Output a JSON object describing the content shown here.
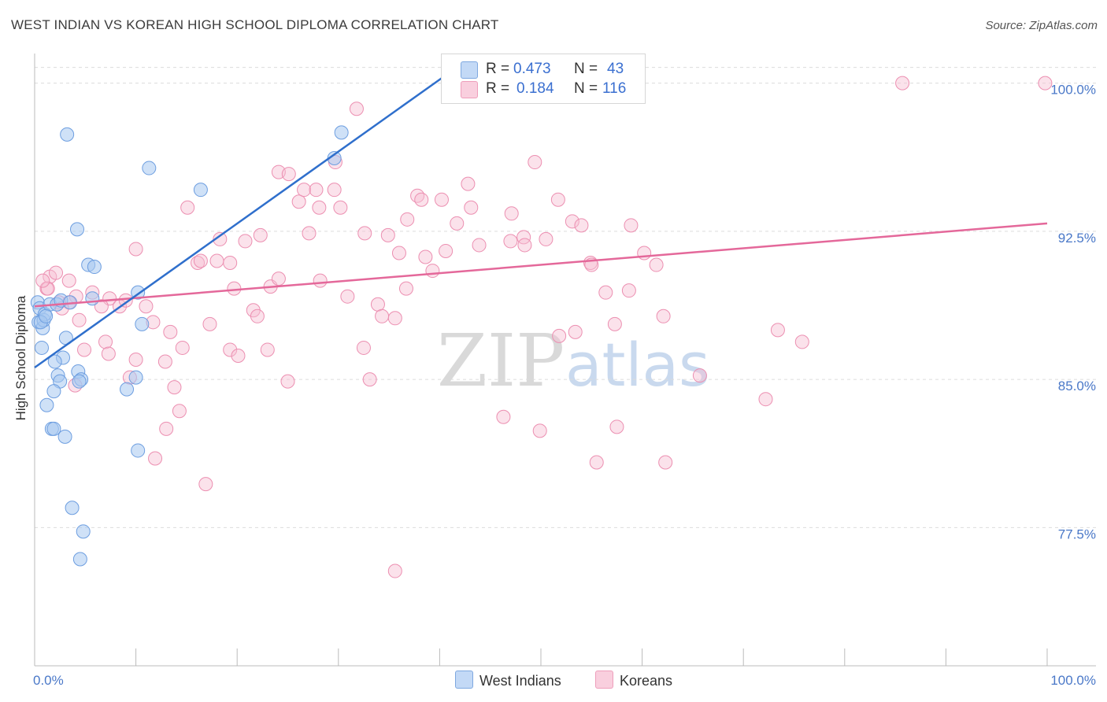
{
  "title": "WEST INDIAN VS KOREAN HIGH SCHOOL DIPLOMA CORRELATION CHART",
  "source": "Source: ZipAtlas.com",
  "watermark": {
    "zip": "ZIP",
    "atlas": "atlas"
  },
  "colors": {
    "west_indians_fill": "#a8c8f0",
    "west_indians_stroke": "#6d9ee0",
    "west_indians_line": "#2f6fcc",
    "koreans_fill": "#f7bfd3",
    "koreans_stroke": "#ec8fb1",
    "koreans_line": "#e4689a",
    "grid": "#dcdcdc",
    "tick_label": "#4a78c8"
  },
  "legend": {
    "rows": [
      {
        "r_label": "R = ",
        "r_value": "0.473",
        "n_label": "N = ",
        "n_value": "43"
      },
      {
        "r_label": "R = ",
        "r_value": "0.184",
        "n_label": "N = ",
        "n_value": "116"
      }
    ]
  },
  "bottom_legend": {
    "west_indians": "West Indians",
    "koreans": "Koreans"
  },
  "chart_data": {
    "type": "scatter",
    "title": "WEST INDIAN VS KOREAN HIGH SCHOOL DIPLOMA CORRELATION CHART",
    "xlabel": "",
    "ylabel": "High School Diploma",
    "xlim": [
      0,
      100
    ],
    "ylim": [
      70.5,
      101.5
    ],
    "y_ticks": [
      77.5,
      85.0,
      92.5,
      100.0
    ],
    "y_tick_labels": [
      "77.5%",
      "85.0%",
      "92.5%",
      "100.0%"
    ],
    "x_tick_labels": [
      "0.0%",
      "100.0%"
    ],
    "grid": true,
    "series": [
      {
        "name": "West Indians",
        "R": 0.473,
        "N": 43,
        "trend": {
          "x": [
            0,
            40.6
          ],
          "y": [
            85.6,
            100.4
          ]
        },
        "points": [
          [
            0.3,
            88.9
          ],
          [
            0.5,
            88.6
          ],
          [
            0.4,
            87.9
          ],
          [
            0.8,
            87.6
          ],
          [
            0.9,
            88.0
          ],
          [
            1.0,
            88.3
          ],
          [
            0.7,
            86.6
          ],
          [
            1.5,
            88.8
          ],
          [
            2.2,
            88.8
          ],
          [
            2.6,
            89.0
          ],
          [
            3.5,
            88.9
          ],
          [
            3.1,
            87.1
          ],
          [
            2.8,
            86.1
          ],
          [
            2.0,
            85.9
          ],
          [
            2.3,
            85.2
          ],
          [
            2.5,
            84.9
          ],
          [
            1.9,
            84.4
          ],
          [
            1.2,
            83.7
          ],
          [
            1.7,
            82.5
          ],
          [
            1.9,
            82.5
          ],
          [
            3.0,
            82.1
          ],
          [
            4.3,
            85.4
          ],
          [
            4.6,
            85.0
          ],
          [
            4.4,
            84.9
          ],
          [
            3.2,
            97.4
          ],
          [
            4.2,
            92.6
          ],
          [
            5.3,
            90.8
          ],
          [
            5.9,
            90.7
          ],
          [
            5.7,
            89.1
          ],
          [
            10.0,
            85.1
          ],
          [
            9.1,
            84.5
          ],
          [
            10.2,
            81.4
          ],
          [
            10.2,
            89.4
          ],
          [
            10.6,
            87.8
          ],
          [
            11.3,
            95.7
          ],
          [
            16.4,
            94.6
          ],
          [
            3.7,
            78.5
          ],
          [
            4.8,
            77.3
          ],
          [
            4.5,
            75.9
          ],
          [
            29.6,
            96.2
          ],
          [
            30.3,
            97.5
          ],
          [
            0.6,
            87.9
          ],
          [
            1.1,
            88.2
          ]
        ]
      },
      {
        "name": "Koreans",
        "R": 0.184,
        "N": 116,
        "trend": {
          "x": [
            0,
            100
          ],
          "y": [
            88.7,
            92.9
          ]
        },
        "points": [
          [
            1.2,
            89.6
          ],
          [
            1.5,
            90.2
          ],
          [
            1.3,
            89.6
          ],
          [
            3.4,
            90.0
          ],
          [
            4.1,
            89.2
          ],
          [
            3.4,
            88.9
          ],
          [
            2.4,
            88.9
          ],
          [
            2.7,
            88.6
          ],
          [
            4.4,
            88.0
          ],
          [
            5.7,
            89.4
          ],
          [
            7.4,
            89.1
          ],
          [
            8.4,
            88.7
          ],
          [
            9.0,
            89.0
          ],
          [
            11.0,
            88.7
          ],
          [
            11.7,
            87.9
          ],
          [
            7.0,
            86.9
          ],
          [
            7.3,
            86.3
          ],
          [
            4.9,
            86.5
          ],
          [
            4.0,
            84.7
          ],
          [
            10.0,
            86.0
          ],
          [
            9.4,
            85.1
          ],
          [
            12.9,
            85.9
          ],
          [
            13.4,
            87.4
          ],
          [
            14.6,
            86.6
          ],
          [
            13.8,
            84.6
          ],
          [
            10.0,
            91.6
          ],
          [
            15.1,
            93.7
          ],
          [
            16.1,
            90.9
          ],
          [
            16.4,
            91.0
          ],
          [
            17.3,
            87.8
          ],
          [
            18.0,
            91.0
          ],
          [
            18.3,
            92.1
          ],
          [
            19.3,
            90.9
          ],
          [
            19.3,
            86.5
          ],
          [
            19.7,
            89.6
          ],
          [
            20.1,
            86.2
          ],
          [
            20.8,
            92.0
          ],
          [
            21.6,
            88.5
          ],
          [
            22.0,
            88.2
          ],
          [
            22.3,
            92.3
          ],
          [
            23.0,
            86.5
          ],
          [
            23.3,
            89.7
          ],
          [
            24.1,
            90.1
          ],
          [
            24.1,
            95.5
          ],
          [
            25.1,
            95.4
          ],
          [
            25.0,
            84.9
          ],
          [
            26.1,
            94.0
          ],
          [
            26.6,
            94.6
          ],
          [
            27.1,
            92.4
          ],
          [
            27.8,
            94.6
          ],
          [
            28.1,
            93.7
          ],
          [
            28.2,
            90.0
          ],
          [
            29.6,
            94.6
          ],
          [
            29.7,
            96.0
          ],
          [
            30.2,
            93.7
          ],
          [
            30.9,
            89.2
          ],
          [
            31.8,
            98.7
          ],
          [
            32.5,
            86.6
          ],
          [
            32.6,
            92.4
          ],
          [
            33.1,
            85.0
          ],
          [
            33.9,
            88.8
          ],
          [
            34.3,
            88.2
          ],
          [
            34.9,
            92.3
          ],
          [
            35.6,
            88.1
          ],
          [
            36.0,
            91.4
          ],
          [
            36.7,
            89.6
          ],
          [
            36.8,
            93.1
          ],
          [
            37.8,
            94.3
          ],
          [
            38.2,
            94.1
          ],
          [
            38.6,
            91.2
          ],
          [
            39.3,
            90.5
          ],
          [
            40.2,
            94.1
          ],
          [
            40.6,
            91.5
          ],
          [
            41.7,
            92.9
          ],
          [
            42.8,
            94.9
          ],
          [
            43.1,
            93.7
          ],
          [
            43.9,
            91.8
          ],
          [
            46.3,
            83.1
          ],
          [
            47.0,
            92.0
          ],
          [
            47.1,
            93.4
          ],
          [
            48.3,
            92.2
          ],
          [
            48.4,
            91.8
          ],
          [
            49.4,
            96.0
          ],
          [
            49.9,
            82.4
          ],
          [
            50.5,
            92.1
          ],
          [
            51.7,
            94.1
          ],
          [
            51.8,
            87.2
          ],
          [
            53.1,
            93.0
          ],
          [
            53.4,
            87.4
          ],
          [
            54.0,
            92.8
          ],
          [
            54.9,
            90.9
          ],
          [
            55.0,
            90.8
          ],
          [
            55.5,
            80.8
          ],
          [
            56.4,
            89.4
          ],
          [
            57.3,
            87.8
          ],
          [
            57.5,
            82.6
          ],
          [
            58.7,
            89.5
          ],
          [
            58.9,
            92.8
          ],
          [
            60.2,
            91.4
          ],
          [
            61.4,
            90.8
          ],
          [
            62.1,
            88.2
          ],
          [
            62.3,
            80.8
          ],
          [
            65.7,
            85.2
          ],
          [
            72.2,
            84.0
          ],
          [
            73.4,
            87.5
          ],
          [
            75.8,
            86.9
          ],
          [
            85.7,
            100.0
          ],
          [
            99.8,
            100.0
          ],
          [
            14.3,
            83.4
          ],
          [
            13.0,
            82.5
          ],
          [
            11.9,
            81.0
          ],
          [
            16.9,
            79.7
          ],
          [
            35.6,
            75.3
          ],
          [
            0.8,
            90.0
          ],
          [
            2.1,
            90.4
          ],
          [
            6.6,
            88.7
          ]
        ]
      }
    ]
  }
}
